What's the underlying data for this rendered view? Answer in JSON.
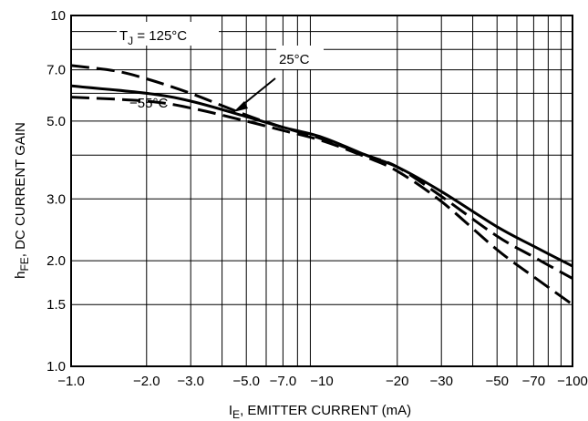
{
  "chart_data": {
    "type": "line",
    "x_scale": "log",
    "y_scale": "log",
    "xlim": [
      -1.0,
      -100
    ],
    "ylim": [
      1.0,
      10
    ],
    "grid": true,
    "xlabel": {
      "main": "I",
      "sub": "E",
      "rest": ", EMITTER CURRENT (mA)"
    },
    "ylabel": {
      "main": "h",
      "sub": "FE",
      "rest": ", DC CURRENT GAIN"
    },
    "x_ticks": [
      {
        "value": -1.0,
        "label": "−1.0"
      },
      {
        "value": -2.0,
        "label": "−2.0"
      },
      {
        "value": -3.0,
        "label": "−3.0"
      },
      {
        "value": -5.0,
        "label": "−5.0"
      },
      {
        "value": -7.0,
        "label": "−7.0"
      },
      {
        "value": -10,
        "label": "−10"
      },
      {
        "value": -20,
        "label": "−20"
      },
      {
        "value": -30,
        "label": "−30"
      },
      {
        "value": -50,
        "label": "−50"
      },
      {
        "value": -70,
        "label": "−70"
      },
      {
        "value": -100,
        "label": "−100"
      }
    ],
    "y_ticks": [
      {
        "value": 1.0,
        "label": "1.0"
      },
      {
        "value": 1.5,
        "label": "1.5"
      },
      {
        "value": 2.0,
        "label": "2.0"
      },
      {
        "value": 3.0,
        "label": "3.0"
      },
      {
        "value": 5.0,
        "label": "5.0"
      },
      {
        "value": 7.0,
        "label": "7.0"
      },
      {
        "value": 10,
        "label": "10"
      }
    ],
    "series": [
      {
        "name": "T_J = 125°C",
        "style": "dashed",
        "x": [
          -1.0,
          -1.5,
          -2.0,
          -3.0,
          -5.0,
          -7.0,
          -10,
          -15,
          -20,
          -30,
          -50,
          -70,
          -100
        ],
        "y": [
          7.2,
          6.95,
          6.6,
          6.0,
          5.2,
          4.8,
          4.45,
          4.0,
          3.7,
          3.05,
          2.35,
          2.05,
          1.78
        ]
      },
      {
        "name": "25°C",
        "style": "solid",
        "x": [
          -1.0,
          -2.0,
          -3.0,
          -5.0,
          -7.0,
          -10,
          -15,
          -20,
          -30,
          -50,
          -70,
          -100
        ],
        "y": [
          6.3,
          6.0,
          5.7,
          5.15,
          4.8,
          4.5,
          4.0,
          3.7,
          3.15,
          2.5,
          2.2,
          1.93
        ]
      },
      {
        "name": "−55°C",
        "style": "dashed",
        "x": [
          -1.0,
          -2.0,
          -3.0,
          -5.0,
          -7.0,
          -10,
          -15,
          -20,
          -30,
          -50,
          -70,
          -100
        ],
        "y": [
          5.85,
          5.7,
          5.45,
          5.0,
          4.7,
          4.4,
          3.95,
          3.6,
          2.95,
          2.15,
          1.8,
          1.5
        ]
      }
    ],
    "annotations": [
      {
        "series": 0,
        "text_main": "T",
        "text_sub": "J",
        "text_rest": " = 125°C"
      },
      {
        "series": 1,
        "text_main": "25°C",
        "text_sub": "",
        "text_rest": ""
      },
      {
        "series": 2,
        "text_main": "−55°C",
        "text_sub": "",
        "text_rest": ""
      }
    ],
    "colors": {
      "line": "#000000",
      "grid": "#000000",
      "background": "#ffffff"
    }
  }
}
